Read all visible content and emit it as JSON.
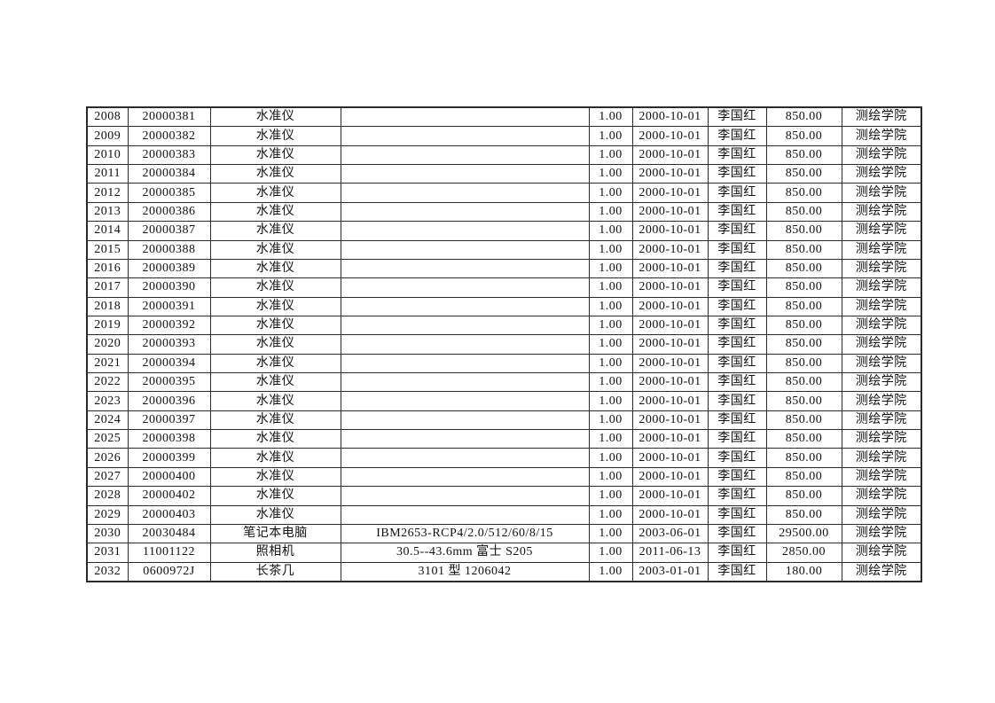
{
  "table": {
    "rows": [
      [
        "2008",
        "20000381",
        "水准仪",
        "",
        "1.00",
        "2000-10-01",
        "李国红",
        "850.00",
        "测绘学院"
      ],
      [
        "2009",
        "20000382",
        "水准仪",
        "",
        "1.00",
        "2000-10-01",
        "李国红",
        "850.00",
        "测绘学院"
      ],
      [
        "2010",
        "20000383",
        "水准仪",
        "",
        "1.00",
        "2000-10-01",
        "李国红",
        "850.00",
        "测绘学院"
      ],
      [
        "2011",
        "20000384",
        "水准仪",
        "",
        "1.00",
        "2000-10-01",
        "李国红",
        "850.00",
        "测绘学院"
      ],
      [
        "2012",
        "20000385",
        "水准仪",
        "",
        "1.00",
        "2000-10-01",
        "李国红",
        "850.00",
        "测绘学院"
      ],
      [
        "2013",
        "20000386",
        "水准仪",
        "",
        "1.00",
        "2000-10-01",
        "李国红",
        "850.00",
        "测绘学院"
      ],
      [
        "2014",
        "20000387",
        "水准仪",
        "",
        "1.00",
        "2000-10-01",
        "李国红",
        "850.00",
        "测绘学院"
      ],
      [
        "2015",
        "20000388",
        "水准仪",
        "",
        "1.00",
        "2000-10-01",
        "李国红",
        "850.00",
        "测绘学院"
      ],
      [
        "2016",
        "20000389",
        "水准仪",
        "",
        "1.00",
        "2000-10-01",
        "李国红",
        "850.00",
        "测绘学院"
      ],
      [
        "2017",
        "20000390",
        "水准仪",
        "",
        "1.00",
        "2000-10-01",
        "李国红",
        "850.00",
        "测绘学院"
      ],
      [
        "2018",
        "20000391",
        "水准仪",
        "",
        "1.00",
        "2000-10-01",
        "李国红",
        "850.00",
        "测绘学院"
      ],
      [
        "2019",
        "20000392",
        "水准仪",
        "",
        "1.00",
        "2000-10-01",
        "李国红",
        "850.00",
        "测绘学院"
      ],
      [
        "2020",
        "20000393",
        "水准仪",
        "",
        "1.00",
        "2000-10-01",
        "李国红",
        "850.00",
        "测绘学院"
      ],
      [
        "2021",
        "20000394",
        "水准仪",
        "",
        "1.00",
        "2000-10-01",
        "李国红",
        "850.00",
        "测绘学院"
      ],
      [
        "2022",
        "20000395",
        "水准仪",
        "",
        "1.00",
        "2000-10-01",
        "李国红",
        "850.00",
        "测绘学院"
      ],
      [
        "2023",
        "20000396",
        "水准仪",
        "",
        "1.00",
        "2000-10-01",
        "李国红",
        "850.00",
        "测绘学院"
      ],
      [
        "2024",
        "20000397",
        "水准仪",
        "",
        "1.00",
        "2000-10-01",
        "李国红",
        "850.00",
        "测绘学院"
      ],
      [
        "2025",
        "20000398",
        "水准仪",
        "",
        "1.00",
        "2000-10-01",
        "李国红",
        "850.00",
        "测绘学院"
      ],
      [
        "2026",
        "20000399",
        "水准仪",
        "",
        "1.00",
        "2000-10-01",
        "李国红",
        "850.00",
        "测绘学院"
      ],
      [
        "2027",
        "20000400",
        "水准仪",
        "",
        "1.00",
        "2000-10-01",
        "李国红",
        "850.00",
        "测绘学院"
      ],
      [
        "2028",
        "20000402",
        "水准仪",
        "",
        "1.00",
        "2000-10-01",
        "李国红",
        "850.00",
        "测绘学院"
      ],
      [
        "2029",
        "20000403",
        "水准仪",
        "",
        "1.00",
        "2000-10-01",
        "李国红",
        "850.00",
        "测绘学院"
      ],
      [
        "2030",
        "20030484",
        "笔记本电脑",
        "IBM2653-RCP4/2.0/512/60/8/15",
        "1.00",
        "2003-06-01",
        "李国红",
        "29500.00",
        "测绘学院"
      ],
      [
        "2031",
        "11001122",
        "照相机",
        "30.5--43.6mm 富士 S205",
        "1.00",
        "2011-06-13",
        "李国红",
        "2850.00",
        "测绘学院"
      ],
      [
        "2032",
        "0600972J",
        "长茶几",
        "3101 型 1206042",
        "1.00",
        "2003-01-01",
        "李国红",
        "180.00",
        "测绘学院"
      ]
    ]
  }
}
